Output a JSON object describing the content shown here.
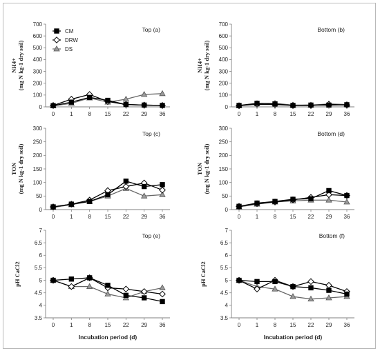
{
  "chart_data": [
    {
      "type": "line",
      "title": "Top (a)",
      "ylabel": "NH₄⁺ (mg N kg⁻¹ dry soil)",
      "ylabel_lines": [
        "NH4+",
        "(mg N kg-1 dry soil)"
      ],
      "xlabel": "",
      "categories": [
        "0",
        "1",
        "8",
        "15",
        "22",
        "29",
        "36"
      ],
      "ylim": [
        0,
        700
      ],
      "yticks": [
        0,
        100,
        200,
        300,
        400,
        500,
        600,
        700
      ],
      "legend": "top-left",
      "series": [
        {
          "name": "CM",
          "values": [
            10,
            40,
            80,
            55,
            20,
            15,
            12
          ]
        },
        {
          "name": "DRW",
          "values": [
            12,
            65,
            105,
            45,
            20,
            15,
            12
          ]
        },
        {
          "name": "DS",
          "values": [
            8,
            30,
            75,
            40,
            65,
            105,
            112
          ]
        }
      ]
    },
    {
      "type": "line",
      "title": "Bottom (b)",
      "ylabel": "NH₄⁺ (mg N kg⁻¹ dry soil)",
      "ylabel_lines": [
        "NH4+",
        "(mg N kg-1 dry soil)"
      ],
      "xlabel": "",
      "categories": [
        "0",
        "1",
        "8",
        "15",
        "22",
        "29",
        "36"
      ],
      "ylim": [
        0,
        700
      ],
      "yticks": [
        0,
        100,
        200,
        300,
        400,
        500,
        600,
        700
      ],
      "series": [
        {
          "name": "CM",
          "values": [
            12,
            30,
            25,
            12,
            15,
            15,
            18
          ]
        },
        {
          "name": "DRW",
          "values": [
            10,
            22,
            20,
            12,
            12,
            22,
            15
          ]
        },
        {
          "name": "DS",
          "values": [
            8,
            28,
            30,
            15,
            15,
            25,
            20
          ]
        }
      ]
    },
    {
      "type": "line",
      "title": "Top (c)",
      "ylabel": "TON (mg N kg⁻¹ dry soil)",
      "ylabel_lines": [
        "TON",
        "(mg N kg-1 dry soil)"
      ],
      "xlabel": "",
      "categories": [
        "0",
        "1",
        "8",
        "15",
        "22",
        "29",
        "36"
      ],
      "ylim": [
        0,
        300
      ],
      "yticks": [
        0,
        50,
        100,
        150,
        200,
        250,
        300
      ],
      "series": [
        {
          "name": "CM",
          "values": [
            10,
            20,
            30,
            55,
            105,
            85,
            92
          ]
        },
        {
          "name": "DRW",
          "values": [
            10,
            20,
            35,
            70,
            85,
            98,
            72
          ]
        },
        {
          "name": "DS",
          "values": [
            8,
            18,
            30,
            50,
            78,
            50,
            55
          ]
        }
      ]
    },
    {
      "type": "line",
      "title": "Bottom (d)",
      "ylabel": "TON (mg N kg⁻¹ dry soil)",
      "ylabel_lines": [
        "TON",
        "(mg N kg-1 dry soil)"
      ],
      "xlabel": "",
      "categories": [
        "0",
        "1",
        "8",
        "15",
        "22",
        "29",
        "36"
      ],
      "ylim": [
        0,
        300
      ],
      "yticks": [
        0,
        50,
        100,
        150,
        200,
        250,
        300
      ],
      "series": [
        {
          "name": "CM",
          "values": [
            12,
            24,
            30,
            38,
            40,
            70,
            52
          ]
        },
        {
          "name": "DRW",
          "values": [
            12,
            22,
            28,
            36,
            45,
            55,
            52
          ]
        },
        {
          "name": "DS",
          "values": [
            10,
            20,
            28,
            32,
            35,
            35,
            28
          ]
        }
      ]
    },
    {
      "type": "line",
      "title": "Top (e)",
      "ylabel": "pH CaCl₂",
      "ylabel_lines": [
        "pH CaCl2"
      ],
      "xlabel": "Incubation period (d)",
      "categories": [
        "0",
        "1",
        "8",
        "15",
        "22",
        "29",
        "36"
      ],
      "ylim": [
        3.5,
        7
      ],
      "yticks": [
        3.5,
        4,
        4.5,
        5,
        5.5,
        6,
        6.5,
        7
      ],
      "series": [
        {
          "name": "CM",
          "values": [
            5.0,
            5.05,
            5.1,
            4.8,
            4.4,
            4.3,
            4.15
          ]
        },
        {
          "name": "DRW",
          "values": [
            5.0,
            4.75,
            5.1,
            4.7,
            4.65,
            4.55,
            4.45
          ]
        },
        {
          "name": "DS",
          "values": [
            5.0,
            4.75,
            4.75,
            4.45,
            4.3,
            4.55,
            4.7
          ]
        }
      ]
    },
    {
      "type": "line",
      "title": "Bottom (f)",
      "ylabel": "pH CaCl₂",
      "ylabel_lines": [
        "pH CaCl2"
      ],
      "xlabel": "Incubation period (d)",
      "categories": [
        "0",
        "1",
        "8",
        "15",
        "22",
        "29",
        "36"
      ],
      "ylim": [
        3.5,
        7
      ],
      "yticks": [
        3.5,
        4,
        4.5,
        5,
        5.5,
        6,
        6.5,
        7
      ],
      "series": [
        {
          "name": "CM",
          "values": [
            5.0,
            4.95,
            4.95,
            4.75,
            4.7,
            4.6,
            4.45
          ]
        },
        {
          "name": "DRW",
          "values": [
            5.0,
            4.65,
            5.0,
            4.75,
            4.95,
            4.8,
            4.55
          ]
        },
        {
          "name": "DS",
          "values": [
            5.0,
            4.75,
            4.65,
            4.35,
            4.25,
            4.3,
            4.35
          ]
        }
      ]
    }
  ],
  "legend": {
    "entries": [
      "CM",
      "DRW",
      "DS"
    ]
  },
  "style": {
    "colors": {
      "CM": "#000000",
      "DRW": "#000000",
      "DS": "#7f7f7f"
    },
    "markers": {
      "CM": "filled-square",
      "DRW": "open-diamond",
      "DS": "gray-triangle"
    }
  }
}
